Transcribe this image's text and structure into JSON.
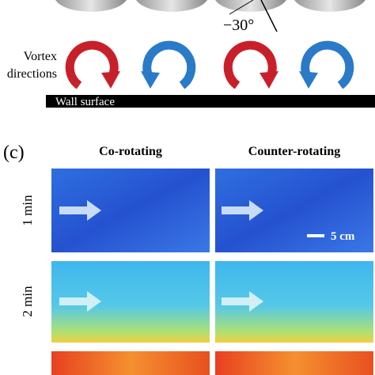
{
  "top": {
    "angle_label": "−30°",
    "vortex_label": [
      "Vortex",
      "directions"
    ],
    "wall_label": "Wall surface"
  },
  "panel": {
    "label": "(c)",
    "columns": [
      "Co-rotating",
      "Counter-rotating"
    ],
    "rows": [
      "1 min",
      "2 min"
    ],
    "scale_label": "5 cm"
  }
}
